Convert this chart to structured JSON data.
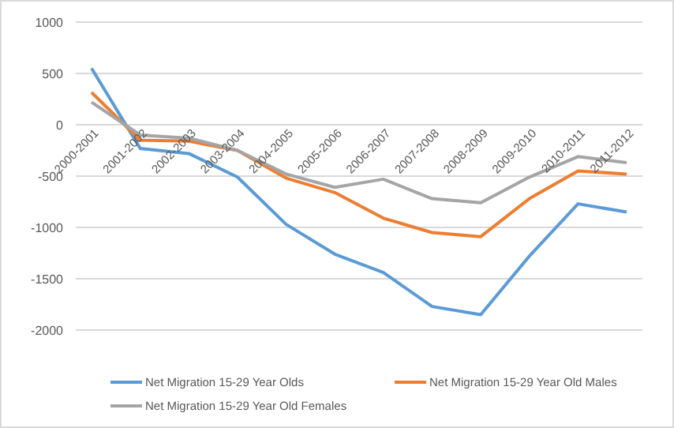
{
  "chart_data": {
    "type": "line",
    "categories": [
      "2000-2001",
      "2001-2002",
      "2002-2003",
      "2003-2004",
      "2004-2005",
      "2005-2006",
      "2006-2007",
      "2007-2008",
      "2008-2009",
      "2009-2010",
      "2010-2011",
      "2011-2012"
    ],
    "series": [
      {
        "name": "Net Migration 15-29 Year Olds",
        "color": "#5b9bd5",
        "values": [
          550,
          -230,
          -280,
          -510,
          -970,
          -1260,
          -1440,
          -1770,
          -1850,
          -1280,
          -770,
          -850
        ]
      },
      {
        "name": "Net Migration 15-29 Year Old Males",
        "color": "#ed7d31",
        "values": [
          315,
          -150,
          -160,
          -250,
          -520,
          -660,
          -910,
          -1050,
          -1090,
          -720,
          -450,
          -480
        ]
      },
      {
        "name": "Net Migration 15-29 Year Old Females",
        "color": "#a5a5a5",
        "values": [
          220,
          -100,
          -130,
          -250,
          -480,
          -610,
          -530,
          -720,
          -760,
          -510,
          -310,
          -370
        ]
      }
    ],
    "ylim": [
      -2000,
      1000
    ],
    "yticks": [
      -2000,
      -1500,
      -1000,
      -500,
      0,
      500,
      1000
    ],
    "grid": "y",
    "legend": "bottom",
    "marker": "none",
    "line_style": "solid"
  }
}
